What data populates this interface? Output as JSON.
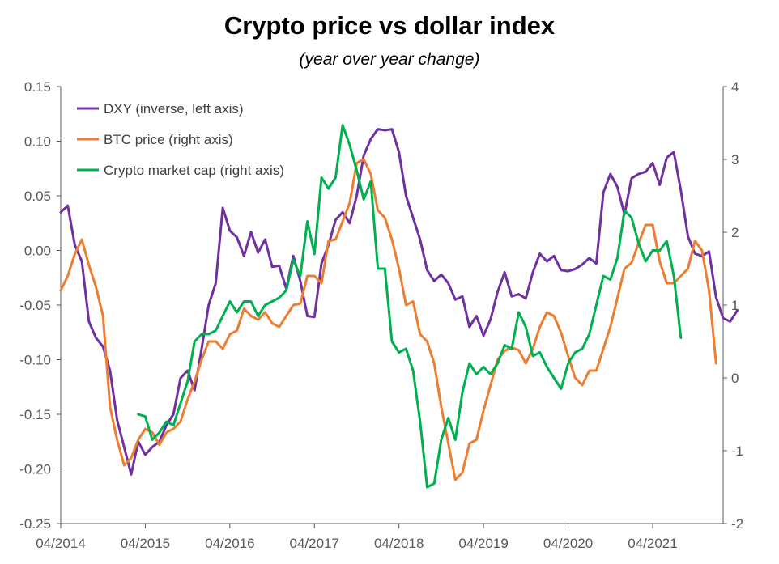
{
  "chart_data": {
    "type": "line",
    "title": "Crypto price vs dollar index",
    "subtitle": "(year over year change)",
    "xlabel": "",
    "ylabel": "",
    "x_start": "2014-04",
    "x_tick_labels": [
      "04/2014",
      "04/2015",
      "04/2016",
      "04/2017",
      "04/2018",
      "04/2019",
      "04/2020",
      "04/2021"
    ],
    "y_left": {
      "min": -0.25,
      "max": 0.15,
      "step": 0.05,
      "tick_labels": [
        "0.15",
        "0.10",
        "0.05",
        "0.00",
        "-0.05",
        "-0.10",
        "-0.15",
        "-0.20",
        "-0.25"
      ]
    },
    "y_right": {
      "min": -2,
      "max": 4,
      "step": 1,
      "tick_labels": [
        "4",
        "3",
        "2",
        "1",
        "0",
        "-1",
        "-2"
      ]
    },
    "legend_position": "top-left",
    "series": [
      {
        "name": "DXY (inverse, left axis)",
        "axis": "left",
        "color": "#7030A0",
        "start": "2014-04",
        "values": [
          0.035,
          0.041,
          0.005,
          -0.01,
          -0.065,
          -0.08,
          -0.088,
          -0.11,
          -0.155,
          -0.18,
          -0.205,
          -0.175,
          -0.187,
          -0.18,
          -0.175,
          -0.16,
          -0.15,
          -0.117,
          -0.11,
          -0.128,
          -0.09,
          -0.05,
          -0.03,
          0.039,
          0.018,
          0.012,
          -0.005,
          0.017,
          -0.002,
          0.01,
          -0.015,
          -0.014,
          -0.035,
          -0.005,
          -0.028,
          -0.06,
          -0.061,
          -0.012,
          0.005,
          0.028,
          0.035,
          0.025,
          0.05,
          0.087,
          0.102,
          0.111,
          0.11,
          0.111,
          0.09,
          0.05,
          0.03,
          0.01,
          -0.018,
          -0.028,
          -0.022,
          -0.03,
          -0.045,
          -0.042,
          -0.07,
          -0.06,
          -0.078,
          -0.063,
          -0.038,
          -0.02,
          -0.042,
          -0.04,
          -0.044,
          -0.02,
          -0.003,
          -0.01,
          -0.005,
          -0.018,
          -0.019,
          -0.017,
          -0.013,
          -0.007,
          -0.012,
          0.053,
          0.07,
          0.058,
          0.033,
          0.066,
          0.07,
          0.072,
          0.08,
          0.06,
          0.085,
          0.09,
          0.055,
          0.013,
          -0.003,
          -0.005,
          -0.001,
          -0.043,
          -0.062,
          -0.065,
          -0.055
        ]
      },
      {
        "name": "BTC price (right axis)",
        "axis": "right",
        "color": "#ED7D31",
        "start": "2014-04",
        "values": [
          1.2,
          1.4,
          1.7,
          1.9,
          1.55,
          1.25,
          0.85,
          -0.4,
          -0.85,
          -1.2,
          -1.1,
          -0.85,
          -0.7,
          -0.75,
          -0.92,
          -0.75,
          -0.7,
          -0.6,
          -0.3,
          -0.05,
          0.25,
          0.5,
          0.5,
          0.4,
          0.6,
          0.65,
          0.95,
          0.85,
          0.8,
          0.9,
          0.75,
          0.7,
          0.85,
          1.0,
          1.02,
          1.4,
          1.4,
          1.3,
          1.88,
          1.9,
          2.15,
          2.4,
          2.95,
          3.0,
          2.8,
          2.3,
          2.2,
          1.9,
          1.5,
          1.0,
          1.05,
          0.6,
          0.5,
          0.2,
          -0.4,
          -0.9,
          -1.4,
          -1.3,
          -0.9,
          -0.85,
          -0.45,
          -0.1,
          0.25,
          0.37,
          0.42,
          0.38,
          0.2,
          0.4,
          0.7,
          0.9,
          0.85,
          0.62,
          0.3,
          0.0,
          -0.1,
          0.1,
          0.1,
          0.4,
          0.7,
          1.1,
          1.5,
          1.58,
          1.85,
          2.1,
          2.1,
          1.6,
          1.3,
          1.3,
          1.4,
          1.5,
          1.88,
          1.75,
          1.2,
          0.2
        ]
      },
      {
        "name": "Crypto market cap (right axis)",
        "axis": "right",
        "color": "#00B050",
        "start": "2015-03",
        "values": [
          -0.5,
          -0.53,
          -0.85,
          -0.75,
          -0.6,
          -0.65,
          -0.35,
          -0.05,
          0.5,
          0.6,
          0.6,
          0.65,
          0.85,
          1.05,
          0.9,
          1.05,
          1.05,
          0.85,
          1.0,
          1.05,
          1.1,
          1.2,
          1.62,
          1.4,
          2.15,
          1.7,
          2.75,
          2.6,
          2.75,
          3.47,
          3.2,
          2.85,
          2.45,
          2.7,
          1.5,
          1.5,
          0.5,
          0.35,
          0.4,
          0.1,
          -0.6,
          -1.5,
          -1.45,
          -0.85,
          -0.55,
          -0.85,
          -0.2,
          0.2,
          0.05,
          0.15,
          0.05,
          0.2,
          0.45,
          0.4,
          0.9,
          0.7,
          0.3,
          0.35,
          0.15,
          0.0,
          -0.15,
          0.2,
          0.35,
          0.4,
          0.6,
          1.0,
          1.4,
          1.35,
          1.65,
          2.3,
          2.2,
          1.85,
          1.6,
          1.75,
          1.75,
          1.88,
          1.4,
          0.55
        ]
      }
    ]
  }
}
